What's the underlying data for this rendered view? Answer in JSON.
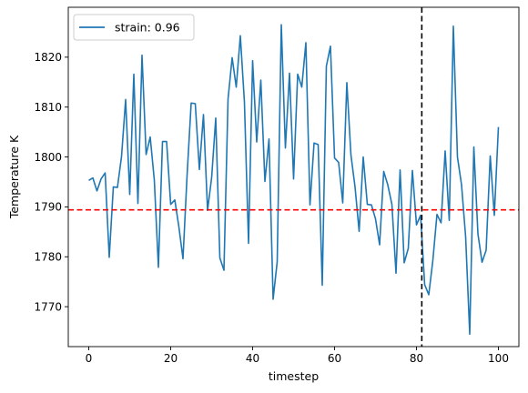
{
  "chart_data": {
    "type": "line",
    "xlabel": "timestep",
    "ylabel": "Temperature K",
    "xlim": [
      -5,
      105
    ],
    "ylim": [
      1762,
      1830
    ],
    "xticks": [
      0,
      20,
      40,
      60,
      80,
      100
    ],
    "yticks": [
      1770,
      1780,
      1790,
      1800,
      1810,
      1820
    ],
    "grid": false,
    "legend_position": "top-left",
    "series": [
      {
        "name": "strain: 0.96",
        "color": "#1f77b4",
        "x": [
          0,
          1,
          2,
          3,
          4,
          5,
          6,
          7,
          8,
          9,
          10,
          11,
          12,
          13,
          14,
          15,
          16,
          17,
          18,
          19,
          20,
          21,
          22,
          23,
          24,
          25,
          26,
          27,
          28,
          29,
          30,
          31,
          32,
          33,
          34,
          35,
          36,
          37,
          38,
          39,
          40,
          41,
          42,
          43,
          44,
          45,
          46,
          47,
          48,
          49,
          50,
          51,
          52,
          53,
          54,
          55,
          56,
          57,
          58,
          59,
          60,
          61,
          62,
          63,
          64,
          65,
          66,
          67,
          68,
          69,
          70,
          71,
          72,
          73,
          74,
          75,
          76,
          77,
          78,
          79,
          80,
          81,
          82,
          83,
          84,
          85,
          86,
          87,
          88,
          89,
          90,
          91,
          92,
          93,
          94,
          95,
          96,
          97,
          98,
          99,
          100
        ],
        "values": [
          1795.3,
          1795.8,
          1793.2,
          1795.6,
          1796.8,
          1779.9,
          1794.0,
          1793.9,
          1800.1,
          1811.5,
          1792.5,
          1816.6,
          1790.7,
          1820.4,
          1800.5,
          1804.0,
          1795.4,
          1777.9,
          1803.1,
          1803.1,
          1790.5,
          1791.4,
          1786.0,
          1779.6,
          1796.3,
          1810.8,
          1810.7,
          1797.5,
          1808.5,
          1789.3,
          1795.9,
          1807.8,
          1779.8,
          1777.3,
          1811.6,
          1819.9,
          1814.0,
          1824.3,
          1811.0,
          1782.7,
          1819.3,
          1803.0,
          1815.4,
          1795.1,
          1803.6,
          1771.5,
          1779.0,
          1826.5,
          1801.8,
          1816.8,
          1795.6,
          1816.6,
          1814.0,
          1822.9,
          1790.4,
          1802.8,
          1802.5,
          1774.3,
          1818.2,
          1822.2,
          1799.8,
          1798.9,
          1790.8,
          1814.9,
          1800.4,
          1794.0,
          1785.1,
          1800.0,
          1790.5,
          1790.4,
          1787.6,
          1782.4,
          1797.1,
          1794.4,
          1790.5,
          1776.7,
          1797.4,
          1778.8,
          1781.7,
          1797.3,
          1786.4,
          1788.3,
          1774.4,
          1772.4,
          1779.3,
          1788.5,
          1786.8,
          1801.2,
          1787.3,
          1826.2,
          1800.0,
          1794.4,
          1784.0,
          1764.5,
          1802.0,
          1784.6,
          1778.9,
          1781.3,
          1800.2,
          1788.3,
          1806.0
        ]
      }
    ],
    "hlines": [
      {
        "y": 1789.4,
        "color": "#ff0000",
        "style": "dashed"
      }
    ],
    "vlines": [
      {
        "x": 81.3,
        "color": "#000000",
        "style": "dashed"
      }
    ]
  }
}
